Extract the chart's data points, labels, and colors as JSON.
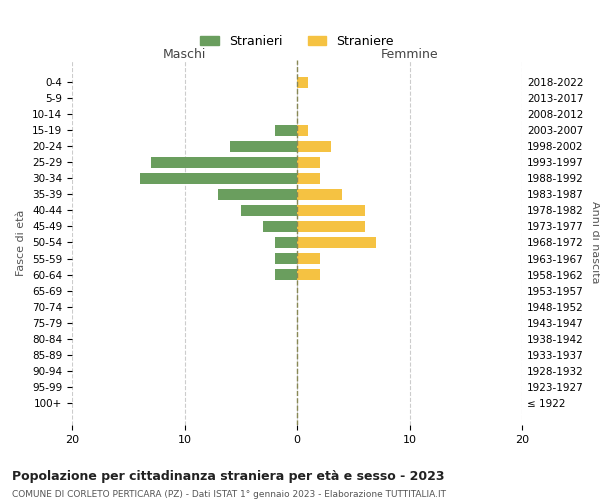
{
  "age_groups": [
    "100+",
    "95-99",
    "90-94",
    "85-89",
    "80-84",
    "75-79",
    "70-74",
    "65-69",
    "60-64",
    "55-59",
    "50-54",
    "45-49",
    "40-44",
    "35-39",
    "30-34",
    "25-29",
    "20-24",
    "15-19",
    "10-14",
    "5-9",
    "0-4"
  ],
  "birth_years": [
    "≤ 1922",
    "1923-1927",
    "1928-1932",
    "1933-1937",
    "1938-1942",
    "1943-1947",
    "1948-1952",
    "1953-1957",
    "1958-1962",
    "1963-1967",
    "1968-1972",
    "1973-1977",
    "1978-1982",
    "1983-1987",
    "1988-1992",
    "1993-1997",
    "1998-2002",
    "2003-2007",
    "2008-2012",
    "2013-2017",
    "2018-2022"
  ],
  "males": [
    0,
    0,
    0,
    0,
    0,
    0,
    0,
    0,
    2,
    2,
    2,
    3,
    5,
    7,
    14,
    13,
    6,
    2,
    0,
    0,
    0
  ],
  "females": [
    0,
    0,
    0,
    0,
    0,
    0,
    0,
    0,
    2,
    2,
    7,
    6,
    6,
    4,
    2,
    2,
    3,
    1,
    0,
    0,
    1
  ],
  "male_color": "#6a9e5e",
  "female_color": "#f5c242",
  "title": "Popolazione per cittadinanza straniera per età e sesso - 2023",
  "subtitle": "COMUNE DI CORLETO PERTICARA (PZ) - Dati ISTAT 1° gennaio 2023 - Elaborazione TUTTITALIA.IT",
  "male_label": "Stranieri",
  "female_label": "Straniere",
  "xlabel_left": "Maschi",
  "xlabel_right": "Femmine",
  "ylabel_left": "Fasce di età",
  "ylabel_right": "Anni di nascita",
  "xlim": 20,
  "bg_color": "#ffffff",
  "grid_color": "#cccccc",
  "center_line_color": "#888855"
}
